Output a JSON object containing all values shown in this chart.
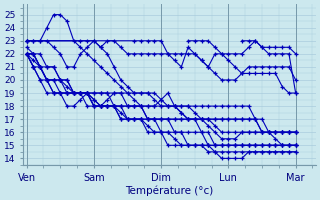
{
  "title": "Température (°c)",
  "background_color": "#cce8ee",
  "grid_color": "#aaccdd",
  "line_color": "#0000bb",
  "marker_color": "#0000bb",
  "ylim": [
    13.5,
    25.8
  ],
  "yticks": [
    14,
    15,
    16,
    17,
    18,
    19,
    20,
    21,
    22,
    23,
    24,
    25
  ],
  "day_labels": [
    "Ven",
    "Sam",
    "Dim",
    "Lun",
    "Mar"
  ],
  "day_x": [
    0,
    48,
    96,
    144,
    192
  ],
  "total_hours": 240,
  "series": [
    {
      "x": [
        0,
        6,
        12,
        18,
        24,
        30,
        36,
        42,
        48,
        54,
        60,
        66,
        72,
        78,
        84,
        90,
        96,
        102,
        108,
        114,
        120,
        126,
        132,
        138,
        144,
        150,
        156,
        162,
        168,
        174,
        180,
        186,
        192,
        198,
        204,
        210,
        216,
        222,
        228,
        234,
        240
      ],
      "y": [
        22,
        22,
        21,
        20,
        19,
        19,
        19,
        19,
        19,
        19,
        19,
        19,
        19,
        18,
        18,
        18,
        18,
        18,
        18,
        18,
        18,
        18,
        18,
        18,
        18,
        18,
        18,
        18,
        18,
        18,
        18,
        18,
        18,
        18,
        17,
        16,
        16,
        16,
        16,
        16,
        16
      ]
    },
    {
      "x": [
        0,
        6,
        12,
        18,
        24,
        30,
        36,
        42,
        48,
        54,
        60,
        66,
        72,
        78,
        84,
        90,
        96,
        102,
        108,
        114,
        120,
        126,
        132,
        138,
        144,
        150,
        156,
        162,
        168,
        174,
        180,
        186,
        192,
        198,
        204,
        210,
        216,
        222,
        228,
        234,
        240
      ],
      "y": [
        22,
        21,
        21,
        20,
        19,
        19,
        19,
        19,
        19,
        19,
        18,
        18,
        18,
        18,
        17,
        17,
        17,
        17,
        17,
        17,
        17,
        17,
        16,
        16,
        16,
        16,
        16,
        15,
        15,
        15,
        15,
        15,
        15,
        15,
        15,
        15,
        15,
        15,
        15,
        15,
        15
      ]
    },
    {
      "x": [
        0,
        6,
        12,
        18,
        24,
        30,
        36,
        42,
        48,
        54,
        60,
        66,
        72,
        78,
        84,
        90,
        96,
        102,
        108,
        114,
        120,
        126,
        132,
        138,
        144,
        150,
        156,
        162,
        168,
        174,
        180,
        186,
        192,
        198,
        204,
        210,
        216,
        222,
        228,
        234,
        240
      ],
      "y": [
        22,
        21,
        20,
        20,
        20,
        20,
        19,
        19,
        19,
        19,
        18,
        18,
        18,
        18,
        17,
        17,
        17,
        17,
        16,
        16,
        16,
        15,
        15,
        15,
        15,
        15,
        15,
        14.5,
        14.5,
        14.5,
        14.5,
        14.5,
        14.5,
        14.5,
        14.5,
        14.5,
        14.5,
        14.5,
        14.5,
        14.5,
        14.5
      ]
    },
    {
      "x": [
        0,
        6,
        12,
        18,
        24,
        30,
        36,
        42,
        48,
        54,
        60,
        66,
        72,
        78,
        84,
        90,
        96,
        102,
        108,
        114,
        120,
        126,
        132,
        138,
        144,
        150,
        156,
        162,
        168,
        174,
        180,
        186,
        192,
        198,
        204,
        210,
        216,
        222,
        228,
        234,
        240
      ],
      "y": [
        22,
        22,
        21,
        21,
        21,
        20,
        20,
        19,
        19,
        19,
        18,
        18,
        18,
        18,
        18,
        17,
        17,
        17,
        17,
        17,
        16,
        16,
        16,
        16,
        15,
        15,
        15,
        15,
        15,
        15,
        15,
        15,
        15,
        15,
        15,
        15,
        15,
        15,
        15,
        15,
        15
      ]
    },
    {
      "x": [
        0,
        6,
        12,
        18,
        24,
        30,
        36,
        42,
        48,
        54,
        60,
        66,
        72,
        78,
        84,
        90,
        96,
        102,
        108,
        114,
        120,
        126,
        132,
        138,
        144,
        150,
        156,
        162,
        168,
        174,
        180,
        186,
        192,
        198,
        204,
        210,
        216,
        222,
        228,
        234,
        240
      ],
      "y": [
        22.5,
        22,
        22,
        21,
        21,
        20,
        20,
        19,
        19,
        18,
        18,
        18,
        18,
        18,
        18,
        18,
        18,
        18,
        17,
        17,
        17,
        17,
        17,
        17,
        17,
        17,
        16,
        16,
        15,
        15,
        15,
        15,
        15,
        15,
        15,
        15,
        15,
        15,
        15,
        15,
        15
      ]
    },
    {
      "x": [
        0,
        6,
        12,
        18,
        24,
        30,
        36,
        42,
        48,
        54,
        60,
        66,
        72,
        78,
        84,
        90,
        96,
        102,
        108,
        114,
        120,
        126,
        132,
        138,
        144,
        150,
        156,
        162,
        168,
        174,
        180,
        186,
        192,
        198,
        204,
        210,
        216,
        222,
        228,
        234,
        240
      ],
      "y": [
        23,
        23,
        23,
        23,
        22.5,
        22,
        21,
        21,
        22,
        22.5,
        23,
        22.5,
        22,
        21,
        20,
        19.5,
        19,
        19,
        19,
        18.5,
        18,
        18,
        18,
        17.5,
        17,
        17,
        17,
        17,
        17,
        17,
        17,
        17,
        17,
        17,
        17,
        16,
        16,
        16,
        16,
        16,
        16
      ]
    },
    {
      "x": [
        0,
        6,
        12,
        18,
        24,
        30,
        36,
        42,
        48,
        54,
        60,
        66,
        72,
        78,
        84,
        90,
        96,
        102,
        108,
        114,
        120,
        126,
        132,
        138,
        144,
        150,
        156,
        162,
        168,
        174,
        180,
        186,
        192,
        198,
        204,
        210,
        216,
        222,
        228,
        234,
        240
      ],
      "y": [
        23,
        23,
        23,
        24,
        25,
        25,
        24.5,
        23,
        22.5,
        22,
        21.5,
        21,
        20.5,
        20,
        19.5,
        19,
        18.5,
        18,
        18,
        18,
        18.5,
        19,
        18,
        17.5,
        17,
        17,
        17,
        17,
        17,
        17,
        17,
        17,
        17,
        17,
        17,
        17,
        16,
        15.5,
        15,
        15,
        15
      ]
    },
    {
      "x": [
        0,
        6,
        12,
        18,
        24,
        30,
        36,
        42,
        48,
        54,
        60,
        66,
        72,
        78,
        84,
        90,
        96,
        102,
        108,
        114,
        120,
        126,
        132,
        138,
        144,
        150,
        156,
        162,
        168,
        174,
        180,
        186,
        192,
        198,
        204,
        210,
        216,
        222,
        228,
        234,
        240
      ],
      "y": [
        22,
        21,
        20,
        19,
        19,
        19,
        18,
        18,
        18.5,
        19,
        18.5,
        18,
        18.5,
        19,
        19,
        19,
        19,
        19,
        19,
        19,
        18.5,
        18,
        18,
        18,
        18,
        17.5,
        17,
        16.5,
        16,
        15.5,
        15.5,
        15.5,
        16,
        16,
        16,
        16,
        16,
        16,
        16,
        16,
        16
      ]
    },
    {
      "x": [
        0,
        6,
        12,
        18,
        24,
        30,
        36,
        42,
        48,
        54,
        60,
        66,
        72,
        78,
        84,
        90,
        96,
        102,
        108,
        114,
        120,
        126,
        132,
        138,
        144,
        150,
        156,
        162,
        168,
        174,
        180,
        186,
        192,
        198,
        204,
        210,
        216,
        222,
        228,
        234,
        240
      ],
      "y": [
        22,
        22,
        21,
        20,
        20,
        19,
        19,
        19,
        19,
        19,
        19,
        19,
        19,
        19,
        19,
        18,
        18,
        18,
        17,
        17,
        17,
        17,
        17,
        17,
        17,
        17,
        17,
        17,
        16.5,
        16,
        16,
        16,
        16,
        16,
        16,
        16,
        16,
        16,
        16,
        16,
        16
      ]
    },
    {
      "x": [
        0,
        6,
        12,
        18,
        24,
        30,
        36,
        42,
        48,
        54,
        60,
        66,
        72,
        78,
        84,
        90,
        96,
        102,
        108,
        114,
        120,
        126,
        132,
        138,
        144,
        150,
        156,
        162,
        168,
        174,
        180,
        186,
        192,
        198,
        204,
        210,
        216,
        222,
        228,
        234,
        240
      ],
      "y": [
        22,
        21.5,
        21,
        20,
        20,
        20,
        19.5,
        19,
        19,
        19,
        18.5,
        18,
        18,
        18,
        17.5,
        17,
        17,
        17,
        16.5,
        16,
        16,
        16,
        15.5,
        15,
        15,
        15,
        15,
        15,
        14.5,
        14,
        14,
        14,
        14,
        14.5,
        14.5,
        14.5,
        14.5,
        14.5,
        14.5,
        14.5,
        14.5
      ]
    },
    {
      "x": [
        0,
        48,
        54,
        60,
        66,
        72,
        78,
        84,
        90,
        96,
        102,
        108,
        114,
        120,
        126,
        132,
        138,
        144,
        150,
        156,
        162,
        168,
        174,
        180,
        186,
        192,
        198,
        204,
        210,
        216,
        222,
        228,
        234,
        240
      ],
      "y": [
        23,
        23,
        23,
        23,
        22.5,
        23,
        23,
        22.5,
        22,
        22,
        22,
        22,
        22,
        22,
        22,
        21.5,
        21,
        22.5,
        22,
        21.5,
        21,
        20.5,
        20,
        20,
        20,
        20.5,
        20.5,
        20.5,
        20.5,
        20.5,
        20.5,
        19.5,
        19,
        19
      ]
    },
    {
      "x": [
        0,
        96,
        102,
        108,
        114,
        120,
        126,
        132,
        138,
        144,
        150,
        156,
        162,
        168,
        174,
        180,
        186,
        192,
        198,
        204,
        210,
        216,
        222,
        228,
        234,
        240
      ],
      "y": [
        23,
        23,
        23,
        23,
        23,
        23,
        22,
        22,
        22,
        22,
        22,
        21.5,
        21,
        22,
        22,
        21.5,
        21,
        20.5,
        21,
        21,
        21,
        21,
        21,
        21,
        21,
        20
      ]
    },
    {
      "x": [
        144,
        150,
        156,
        162,
        168,
        174,
        180,
        186,
        192,
        198,
        204,
        210,
        216,
        222,
        228,
        234,
        240
      ],
      "y": [
        23,
        23,
        23,
        23,
        22.5,
        22,
        22,
        22,
        22,
        22.5,
        23,
        22.5,
        22.5,
        22.5,
        22.5,
        22.5,
        22
      ]
    },
    {
      "x": [
        192,
        198,
        204,
        210,
        216,
        222,
        228,
        234,
        240
      ],
      "y": [
        23,
        23,
        23,
        22.5,
        22,
        22,
        22,
        22,
        19
      ]
    }
  ]
}
